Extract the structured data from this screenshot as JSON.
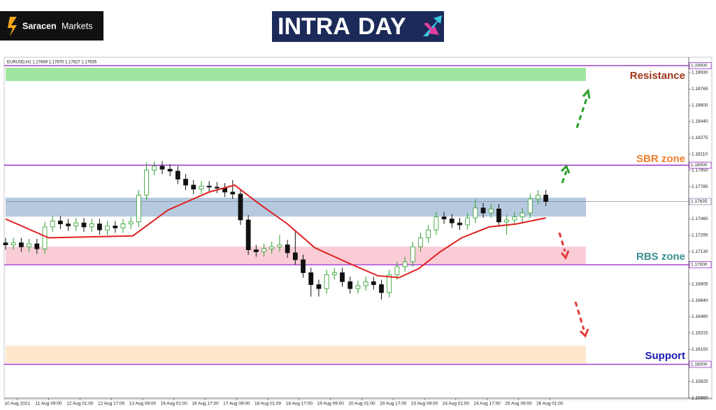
{
  "header": {
    "brand": [
      "Saracen",
      "Markets"
    ],
    "logo": [
      "INTRA",
      "DAY"
    ]
  },
  "chart_data": {
    "type": "candlestick",
    "symbol_label": "EURUSD,H1  1.17669 1.17670 1.17627 1.17635",
    "xlim": [
      0,
      349
    ],
    "xticks": [
      {
        "value": 6,
        "label": "10 Aug 2021"
      },
      {
        "value": 22,
        "label": "11 Aug 09:00"
      },
      {
        "value": 38,
        "label": "12 Aug 01:00"
      },
      {
        "value": 54,
        "label": "12 Aug 17:00"
      },
      {
        "value": 70,
        "label": "13 Aug 09:00"
      },
      {
        "value": 86,
        "label": "16 Aug 01:00"
      },
      {
        "value": 102,
        "label": "16 Aug 17:00"
      },
      {
        "value": 118,
        "label": "17 Aug 09:00"
      },
      {
        "value": 134,
        "label": "18 Aug 01:00"
      },
      {
        "value": 150,
        "label": "18 Aug 17:00"
      },
      {
        "value": 166,
        "label": "19 Aug 09:00"
      },
      {
        "value": 182,
        "label": "20 Aug 01:00"
      },
      {
        "value": 198,
        "label": "20 Aug 17:00"
      },
      {
        "value": 214,
        "label": "23 Aug 09:00"
      },
      {
        "value": 230,
        "label": "24 Aug 01:00"
      },
      {
        "value": 246,
        "label": "24 Aug 17:00"
      },
      {
        "value": 262,
        "label": "25 Aug 09:00"
      },
      {
        "value": 278,
        "label": "26 Aug 01:00"
      }
    ],
    "ylim": [
      1.15674,
      1.19042
    ],
    "yticks": [
      {
        "value": 1.1893,
        "label": "1.18930"
      },
      {
        "value": 1.18765,
        "label": "1.18765"
      },
      {
        "value": 1.186,
        "label": "1.18600"
      },
      {
        "value": 1.1844,
        "label": "1.18440"
      },
      {
        "value": 1.18275,
        "label": "1.18275"
      },
      {
        "value": 1.1811,
        "label": "1.18110"
      },
      {
        "value": 1.1795,
        "label": "1.17950"
      },
      {
        "value": 1.17785,
        "label": "1.17785"
      },
      {
        "value": 1.1746,
        "label": "1.17460"
      },
      {
        "value": 1.17295,
        "label": "1.17295"
      },
      {
        "value": 1.1713,
        "label": "1.17130"
      },
      {
        "value": 1.16805,
        "label": "1.16805"
      },
      {
        "value": 1.1664,
        "label": "1.16640"
      },
      {
        "value": 1.1648,
        "label": "1.16480"
      },
      {
        "value": 1.16315,
        "label": "1.16315"
      },
      {
        "value": 1.1615,
        "label": "1.16150"
      },
      {
        "value": 1.15825,
        "label": "1.15825"
      },
      {
        "value": 1.1566,
        "label": "1.15660"
      }
    ],
    "candles": {
      "up_color": "#2a9d2a",
      "down_color": "#111111",
      "x": [
        0,
        4,
        8,
        12,
        16,
        20,
        24,
        28,
        32,
        36,
        40,
        44,
        48,
        52,
        56,
        60,
        64,
        68,
        72,
        76,
        80,
        84,
        88,
        92,
        96,
        100,
        104,
        108,
        112,
        116,
        120,
        124,
        128,
        132,
        136,
        140,
        144,
        148,
        152,
        156,
        160,
        164,
        168,
        172,
        176,
        180,
        184,
        188,
        192,
        196,
        200,
        204,
        208,
        212,
        216,
        220,
        224,
        228,
        232,
        236,
        240,
        244,
        248,
        252,
        256,
        260,
        264,
        268,
        272,
        276
      ],
      "open": [
        1.1722,
        1.172,
        1.1722,
        1.1718,
        1.1721,
        1.1716,
        1.1738,
        1.1744,
        1.1741,
        1.1739,
        1.1742,
        1.1738,
        1.1741,
        1.1735,
        1.1739,
        1.1737,
        1.1741,
        1.1743,
        1.177,
        1.1795,
        1.1799,
        1.1796,
        1.1794,
        1.1786,
        1.178,
        1.1776,
        1.1779,
        1.1778,
        1.1777,
        1.1773,
        1.1771,
        1.1745,
        1.1715,
        1.1713,
        1.1716,
        1.1718,
        1.172,
        1.1712,
        1.1705,
        1.1692,
        1.168,
        1.1676,
        1.169,
        1.1692,
        1.1683,
        1.1676,
        1.1679,
        1.1683,
        1.168,
        1.1672,
        1.169,
        1.1698,
        1.1703,
        1.1718,
        1.1727,
        1.1735,
        1.1748,
        1.1746,
        1.1742,
        1.174,
        1.1747,
        1.1757,
        1.1752,
        1.1756,
        1.1743,
        1.1745,
        1.1748,
        1.1752,
        1.1766,
        1.177
      ],
      "high": [
        1.1727,
        1.1727,
        1.1727,
        1.1726,
        1.1726,
        1.1743,
        1.1749,
        1.1749,
        1.1746,
        1.1747,
        1.1747,
        1.1746,
        1.1746,
        1.1744,
        1.1744,
        1.1746,
        1.1748,
        1.1775,
        1.1803,
        1.1804,
        1.1804,
        1.1801,
        1.1799,
        1.1791,
        1.1785,
        1.1784,
        1.1784,
        1.1783,
        1.1782,
        1.1785,
        1.1776,
        1.175,
        1.172,
        1.1721,
        1.1723,
        1.173,
        1.1725,
        1.1734,
        1.171,
        1.1697,
        1.1685,
        1.1695,
        1.1697,
        1.1697,
        1.1688,
        1.1684,
        1.1688,
        1.1688,
        1.1685,
        1.1695,
        1.1703,
        1.1708,
        1.1723,
        1.1732,
        1.174,
        1.1753,
        1.1753,
        1.1751,
        1.1747,
        1.1752,
        1.1766,
        1.1762,
        1.1761,
        1.1761,
        1.175,
        1.1753,
        1.1757,
        1.1771,
        1.1775,
        1.1775
      ],
      "low": [
        1.1715,
        1.1715,
        1.1713,
        1.1713,
        1.1711,
        1.1711,
        1.1733,
        1.1736,
        1.1734,
        1.1734,
        1.1733,
        1.1733,
        1.173,
        1.173,
        1.1732,
        1.1732,
        1.1736,
        1.1738,
        1.1765,
        1.179,
        1.1791,
        1.1789,
        1.1781,
        1.1775,
        1.1771,
        1.1771,
        1.1773,
        1.1772,
        1.1768,
        1.1766,
        1.174,
        1.171,
        1.1708,
        1.1708,
        1.1711,
        1.1713,
        1.1707,
        1.17,
        1.1687,
        1.1668,
        1.1668,
        1.1671,
        1.1685,
        1.1678,
        1.1671,
        1.1671,
        1.1674,
        1.1675,
        1.1665,
        1.1667,
        1.1685,
        1.1693,
        1.1698,
        1.1713,
        1.1722,
        1.173,
        1.1741,
        1.1737,
        1.1735,
        1.1735,
        1.1742,
        1.1747,
        1.1747,
        1.1738,
        1.173,
        1.174,
        1.1743,
        1.1747,
        1.1761,
        1.1759
      ],
      "close": [
        1.172,
        1.1722,
        1.1718,
        1.1721,
        1.1716,
        1.1738,
        1.1744,
        1.1741,
        1.1739,
        1.1742,
        1.1738,
        1.1741,
        1.1735,
        1.1739,
        1.1737,
        1.1741,
        1.1743,
        1.177,
        1.1795,
        1.1799,
        1.1796,
        1.1794,
        1.1786,
        1.178,
        1.1776,
        1.1779,
        1.1778,
        1.1777,
        1.1773,
        1.1771,
        1.1745,
        1.1715,
        1.1713,
        1.1716,
        1.1718,
        1.172,
        1.1712,
        1.1705,
        1.1692,
        1.168,
        1.1676,
        1.169,
        1.1692,
        1.1683,
        1.1676,
        1.1679,
        1.1683,
        1.168,
        1.1672,
        1.169,
        1.1698,
        1.1703,
        1.1718,
        1.1727,
        1.1735,
        1.1748,
        1.1746,
        1.1742,
        1.174,
        1.1747,
        1.1757,
        1.1752,
        1.1756,
        1.1743,
        1.1745,
        1.1748,
        1.1752,
        1.1766,
        1.177,
        1.17635
      ]
    },
    "ma": {
      "color": "#e02020",
      "x": [
        0,
        22,
        65,
        83,
        104,
        117,
        129,
        144,
        158,
        176,
        190,
        201,
        211,
        222,
        233,
        247,
        261,
        276
      ],
      "values": [
        1.1746,
        1.1727,
        1.1729,
        1.1755,
        1.1773,
        1.178,
        1.1762,
        1.1741,
        1.1717,
        1.1701,
        1.1689,
        1.1687,
        1.1696,
        1.1713,
        1.1727,
        1.1738,
        1.1741,
        1.1747
      ]
    },
    "zones": [
      {
        "name": "Resistance",
        "low": 1.18846,
        "high": 1.18979,
        "color": "#90e090",
        "label_color": "#a0361b"
      },
      {
        "name": "SBR zone",
        "low": 1.17484,
        "high": 1.17674,
        "color": "#a9bfd9",
        "label_color": "#f07f2d"
      },
      {
        "name": "RBS zone",
        "low": 1.17007,
        "high": 1.17182,
        "color": "#f9c4cf",
        "label_color": "#3a8f8f"
      },
      {
        "name": "Support",
        "low": 1.1601,
        "high": 1.16186,
        "color": "#fde3c4",
        "label_color": "#1a1ab0"
      }
    ],
    "levels": [
      {
        "value": 1.19,
        "label": "1.19000"
      },
      {
        "value": 1.18,
        "label": "1.18000"
      },
      {
        "value": 1.17,
        "label": "1.17000"
      },
      {
        "value": 1.16,
        "label": "1.16000"
      }
    ],
    "level_color": "#9b30c8",
    "last_price": {
      "value": 1.17635,
      "label": "1.17635"
    }
  }
}
